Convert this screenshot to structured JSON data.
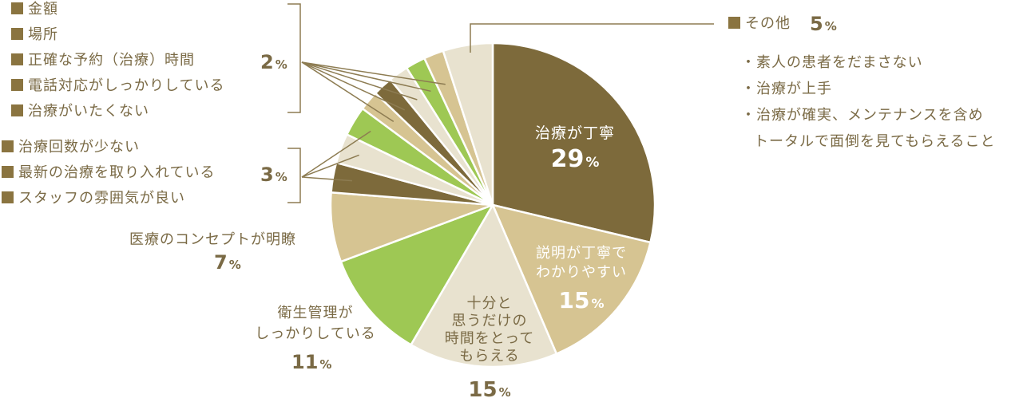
{
  "colors": {
    "dark_brown": "#7d6a3b",
    "tan": "#d6c492",
    "cream": "#e8e2cf",
    "green": "#9ec854",
    "text": "#7a6a45",
    "marker": "#8a7440",
    "line": "#8d7c52"
  },
  "chart_data": {
    "type": "pie",
    "unit": "%",
    "slices": [
      {
        "label": "治療が丁寧",
        "value": 29,
        "color": "#7d6a3b"
      },
      {
        "label": "説明が丁寧でわかりやすい",
        "value": 15,
        "color": "#d6c492"
      },
      {
        "label": "十分と思うだけの時間をとってもらえる",
        "value": 15,
        "color": "#e8e2cf"
      },
      {
        "label": "衛生管理がしっかりしている",
        "value": 11,
        "color": "#9ec854"
      },
      {
        "label": "医療のコンセプトが明瞭",
        "value": 7,
        "color": "#d6c492"
      },
      {
        "label": "スタッフの雰囲気が良い",
        "value": 3,
        "color": "#7d6a3b"
      },
      {
        "label": "最新の治療を取り入れている",
        "value": 3,
        "color": "#e8e2cf"
      },
      {
        "label": "治療回数が少ない",
        "value": 3,
        "color": "#9ec854"
      },
      {
        "label": "治療がいたくない",
        "value": 2,
        "color": "#d6c492"
      },
      {
        "label": "電話対応がしっかりしている",
        "value": 2,
        "color": "#7d6a3b"
      },
      {
        "label": "正確な予約（治療）時間",
        "value": 2,
        "color": "#e8e2cf"
      },
      {
        "label": "場所",
        "value": 2,
        "color": "#9ec854"
      },
      {
        "label": "金額",
        "value": 2,
        "color": "#d6c492"
      },
      {
        "label": "その他",
        "value": 5,
        "color": "#e8e2cf"
      }
    ]
  },
  "labels": {
    "s1_name": "治療が丁寧",
    "s1_pct": "29",
    "s2_line1": "説明が丁寧で",
    "s2_line2": "わかりやすい",
    "s2_pct": "15",
    "s3_line1": "十分と",
    "s3_line2": "思うだけの",
    "s3_line3": "時間をとって",
    "s3_line4": "もらえる",
    "s3_pct": "15",
    "s4_line1": "衛生管理が",
    "s4_line2": "しっかりしている",
    "s4_pct": "11",
    "s5_name": "医療のコンセプトが明瞭",
    "s5_pct": "7",
    "pct_sign": "%"
  },
  "group_2": {
    "items": [
      "金額",
      "場所",
      "正確な予約（治療）時間",
      "電話対応がしっかりしている",
      "治療がいたくない"
    ],
    "pct": "2"
  },
  "group_3": {
    "items": [
      "治療回数が少ない",
      "最新の治療を取り入れている",
      "スタッフの雰囲気が良い"
    ],
    "pct": "3"
  },
  "other": {
    "label": "その他",
    "pct": "5",
    "notes": [
      "・素人の患者をだまさない",
      "・治療が上手",
      "・治療が確実、メンテナンスを含め",
      "トータルで面倒を見てもらえること"
    ]
  }
}
